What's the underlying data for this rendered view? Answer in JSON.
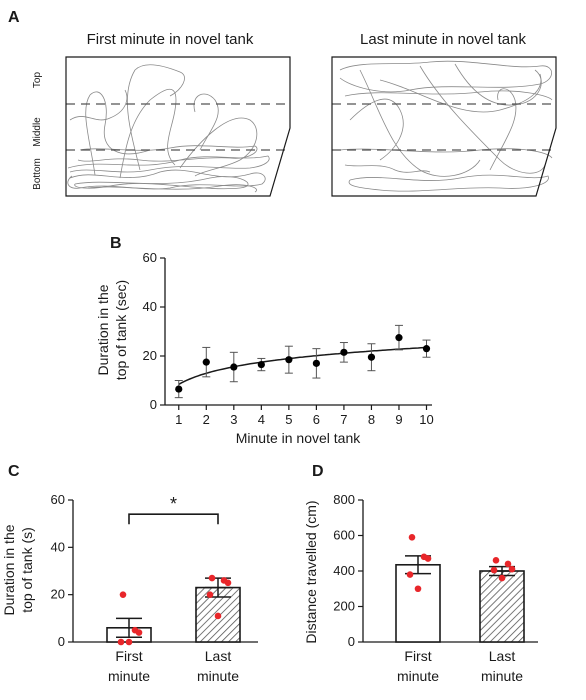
{
  "panels": {
    "A": {
      "letter": "A",
      "left_title": "First minute in novel tank",
      "right_title": "Last minute in novel tank",
      "zones": [
        "Top",
        "Middle",
        "Bottom"
      ]
    },
    "B": {
      "letter": "B",
      "ylabel": [
        "Duration in the",
        "top of tank (sec)"
      ],
      "xlabel": "Minute in novel tank"
    },
    "C": {
      "letter": "C",
      "ylabel": [
        "Duration in the",
        "top of tank (s)"
      ],
      "significance": "*"
    },
    "D": {
      "letter": "D",
      "ylabel": "Distance travelled (cm)"
    }
  },
  "chart_data": [
    {
      "id": "B",
      "type": "scatter",
      "x": [
        1,
        2,
        3,
        4,
        5,
        6,
        7,
        8,
        9,
        10
      ],
      "y": [
        6.5,
        17.5,
        15.5,
        16.5,
        18.5,
        17,
        21.5,
        19.5,
        27.5,
        23
      ],
      "yerr": [
        3.5,
        6,
        6,
        2.5,
        5.5,
        6,
        4,
        5.5,
        5,
        3.5
      ],
      "fit": "curve",
      "xticks": [
        1,
        2,
        3,
        4,
        5,
        6,
        7,
        8,
        9,
        10
      ],
      "yticks": [
        0,
        20,
        40,
        60
      ],
      "xlim": [
        0.5,
        10.2
      ],
      "ylim": [
        0,
        60
      ],
      "xlabel": "Minute in novel tank",
      "ylabel": "Duration in the top of tank (sec)"
    },
    {
      "id": "C",
      "type": "bar",
      "categories": [
        "First minute",
        "Last minute"
      ],
      "category_lines": [
        [
          "First",
          "minute"
        ],
        [
          "Last",
          "minute"
        ]
      ],
      "values": [
        6,
        23
      ],
      "sem": [
        4,
        4
      ],
      "points": [
        [
          20,
          5,
          4,
          0,
          0
        ],
        [
          27,
          26,
          25,
          20,
          11
        ]
      ],
      "yticks": [
        0,
        20,
        40,
        60
      ],
      "ylim": [
        0,
        60
      ],
      "significance": "*",
      "ylabel": "Duration in the top of tank (s)"
    },
    {
      "id": "D",
      "type": "bar",
      "categories": [
        "First minute",
        "Last minute"
      ],
      "category_lines": [
        [
          "First",
          "minute"
        ],
        [
          "Last",
          "minute"
        ]
      ],
      "values": [
        435,
        400
      ],
      "sem": [
        50,
        25
      ],
      "points": [
        [
          590,
          480,
          470,
          380,
          300
        ],
        [
          460,
          440,
          410,
          405,
          360
        ]
      ],
      "yticks": [
        0,
        200,
        400,
        600,
        800
      ],
      "ylim": [
        0,
        800
      ],
      "ylabel": "Distance travelled (cm)"
    }
  ],
  "colors": {
    "axis": "#1a1a1a",
    "trace": "#8a8a8a",
    "dashed": "#555555",
    "point": "#e8262a",
    "hatch": "#555555"
  }
}
